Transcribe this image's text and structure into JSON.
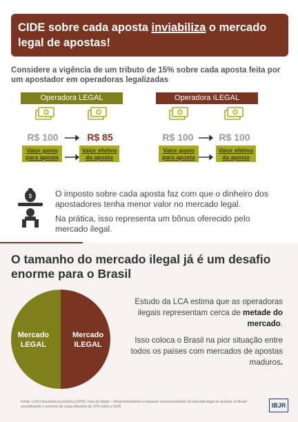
{
  "header": {
    "title_parts": [
      "CIDE sobre cada aposta ",
      "inviabiliza",
      " o mercado legal de apostas!"
    ]
  },
  "subtitle": "Considere a vigência de um tributo de 15% sobre cada aposta feita por um apostador em operadoras legalizadas",
  "legal": {
    "label": "Operadora LEGAL",
    "spent": "R$ 100",
    "spent_caption": "Valor gasto para aposta",
    "effective": "R$ 85",
    "effective_caption": "Valor efetivo da aposta"
  },
  "illegal": {
    "label": "Operadora ILEGAL",
    "spent": "R$ 100",
    "spent_caption": "Valor gasto para aposta",
    "effective": "R$ 100",
    "effective_caption": "Valor efetivo da aposta"
  },
  "impact_paragraphs": [
    "O imposto sobre cada aposta faz com que o dinheiro dos apostadores tenha menor valor no mercado legal.",
    "Na prática, isso representa um bônus oferecido pelo mercado ilegal."
  ],
  "section2": {
    "title": "O tamanho do mercado ilegal já é um desafio enorme para o Brasil",
    "pie": {
      "segments": [
        {
          "label": "Mercado LEGAL",
          "value": 50,
          "color": "#7e801b"
        },
        {
          "label": "Mercado ILEGAL",
          "value": 50,
          "color": "#7a3522"
        }
      ]
    },
    "paragraph1_parts": [
      "Estudo da LCA estima que as operadoras ilegais representam cerca de ",
      "metade do mercado",
      "."
    ],
    "paragraph2_parts": [
      "Isso coloca o Brasil na pior situação entre todos os países com mercados de apostas maduros",
      "."
    ]
  },
  "footer": {
    "source": "Fonte: LCA Consultoria Econômica (2025). Fora do Radar – Dimensionamento e impactos socioeconômicos do mercado ilegal de apostas no Brasil considerando o cenários de carga tributária de 37% sobre o GGR.",
    "logo": "IBJR"
  }
}
